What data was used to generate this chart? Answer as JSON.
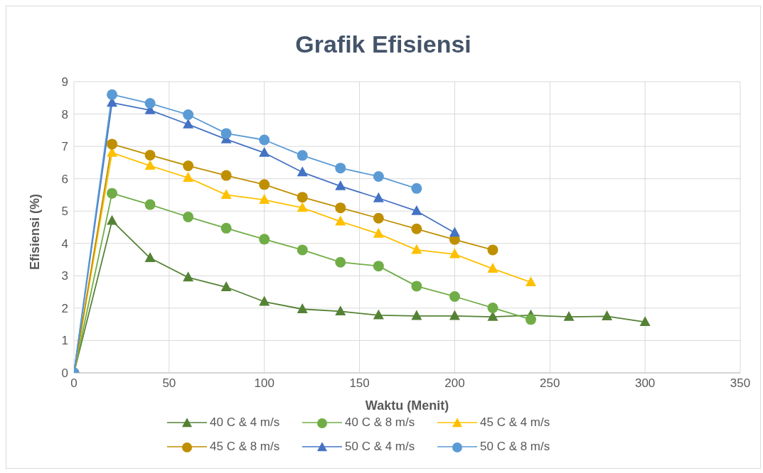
{
  "chart_data": {
    "type": "line",
    "title": "Grafik Efisiensi",
    "xlabel": "Waktu (Menit)",
    "ylabel": "Efisiensi (%)",
    "xlim": [
      0,
      350
    ],
    "xticks": [
      0,
      50,
      100,
      150,
      200,
      250,
      300,
      350
    ],
    "ylim": [
      0,
      9
    ],
    "yticks": [
      0,
      1,
      2,
      3,
      4,
      5,
      6,
      7,
      8,
      9
    ],
    "grid": true,
    "legend": "bottom",
    "series": [
      {
        "name": "40 C & 4 m/s",
        "color": "#548235",
        "marker": "triangle",
        "x": [
          0,
          20,
          40,
          60,
          80,
          100,
          120,
          140,
          160,
          180,
          200,
          220,
          240,
          260,
          280,
          300
        ],
        "values": [
          0,
          4.7,
          3.55,
          2.95,
          2.65,
          2.2,
          1.97,
          1.9,
          1.78,
          1.76,
          1.76,
          1.73,
          1.78,
          1.73,
          1.75,
          1.57
        ]
      },
      {
        "name": "40 C & 8 m/s",
        "color": "#70ad47",
        "marker": "circle",
        "x": [
          0,
          20,
          40,
          60,
          80,
          100,
          120,
          140,
          160,
          180,
          200,
          220,
          240
        ],
        "values": [
          0,
          5.55,
          5.2,
          4.82,
          4.47,
          4.13,
          3.8,
          3.42,
          3.3,
          2.68,
          2.36,
          2.01,
          1.65
        ]
      },
      {
        "name": "45 C & 4 m/s",
        "color": "#ffc000",
        "marker": "triangle",
        "x": [
          0,
          20,
          40,
          60,
          80,
          100,
          120,
          140,
          160,
          180,
          200,
          220,
          240
        ],
        "values": [
          0,
          6.8,
          6.4,
          6.03,
          5.5,
          5.35,
          5.1,
          4.68,
          4.3,
          3.8,
          3.67,
          3.22,
          2.8
        ]
      },
      {
        "name": "45 C & 8 m/s",
        "color": "#bf8f00",
        "marker": "circle",
        "x": [
          0,
          20,
          40,
          60,
          80,
          100,
          120,
          140,
          160,
          180,
          200,
          220
        ],
        "values": [
          0,
          7.07,
          6.73,
          6.4,
          6.1,
          5.82,
          5.43,
          5.1,
          4.78,
          4.45,
          4.12,
          3.8
        ]
      },
      {
        "name": "50 C & 4 m/s",
        "color": "#4472c4",
        "marker": "triangle",
        "x": [
          0,
          20,
          40,
          60,
          80,
          100,
          120,
          140,
          160,
          180,
          200
        ],
        "values": [
          0,
          8.35,
          8.12,
          7.68,
          7.22,
          6.8,
          6.2,
          5.77,
          5.4,
          5.0,
          4.33
        ]
      },
      {
        "name": "50 C & 8 m/s",
        "color": "#5b9bd5",
        "marker": "circle",
        "x": [
          0,
          20,
          40,
          60,
          80,
          100,
          120,
          140,
          160,
          180
        ],
        "values": [
          0,
          8.6,
          8.33,
          7.98,
          7.4,
          7.2,
          6.72,
          6.33,
          6.07,
          5.7
        ]
      }
    ]
  }
}
